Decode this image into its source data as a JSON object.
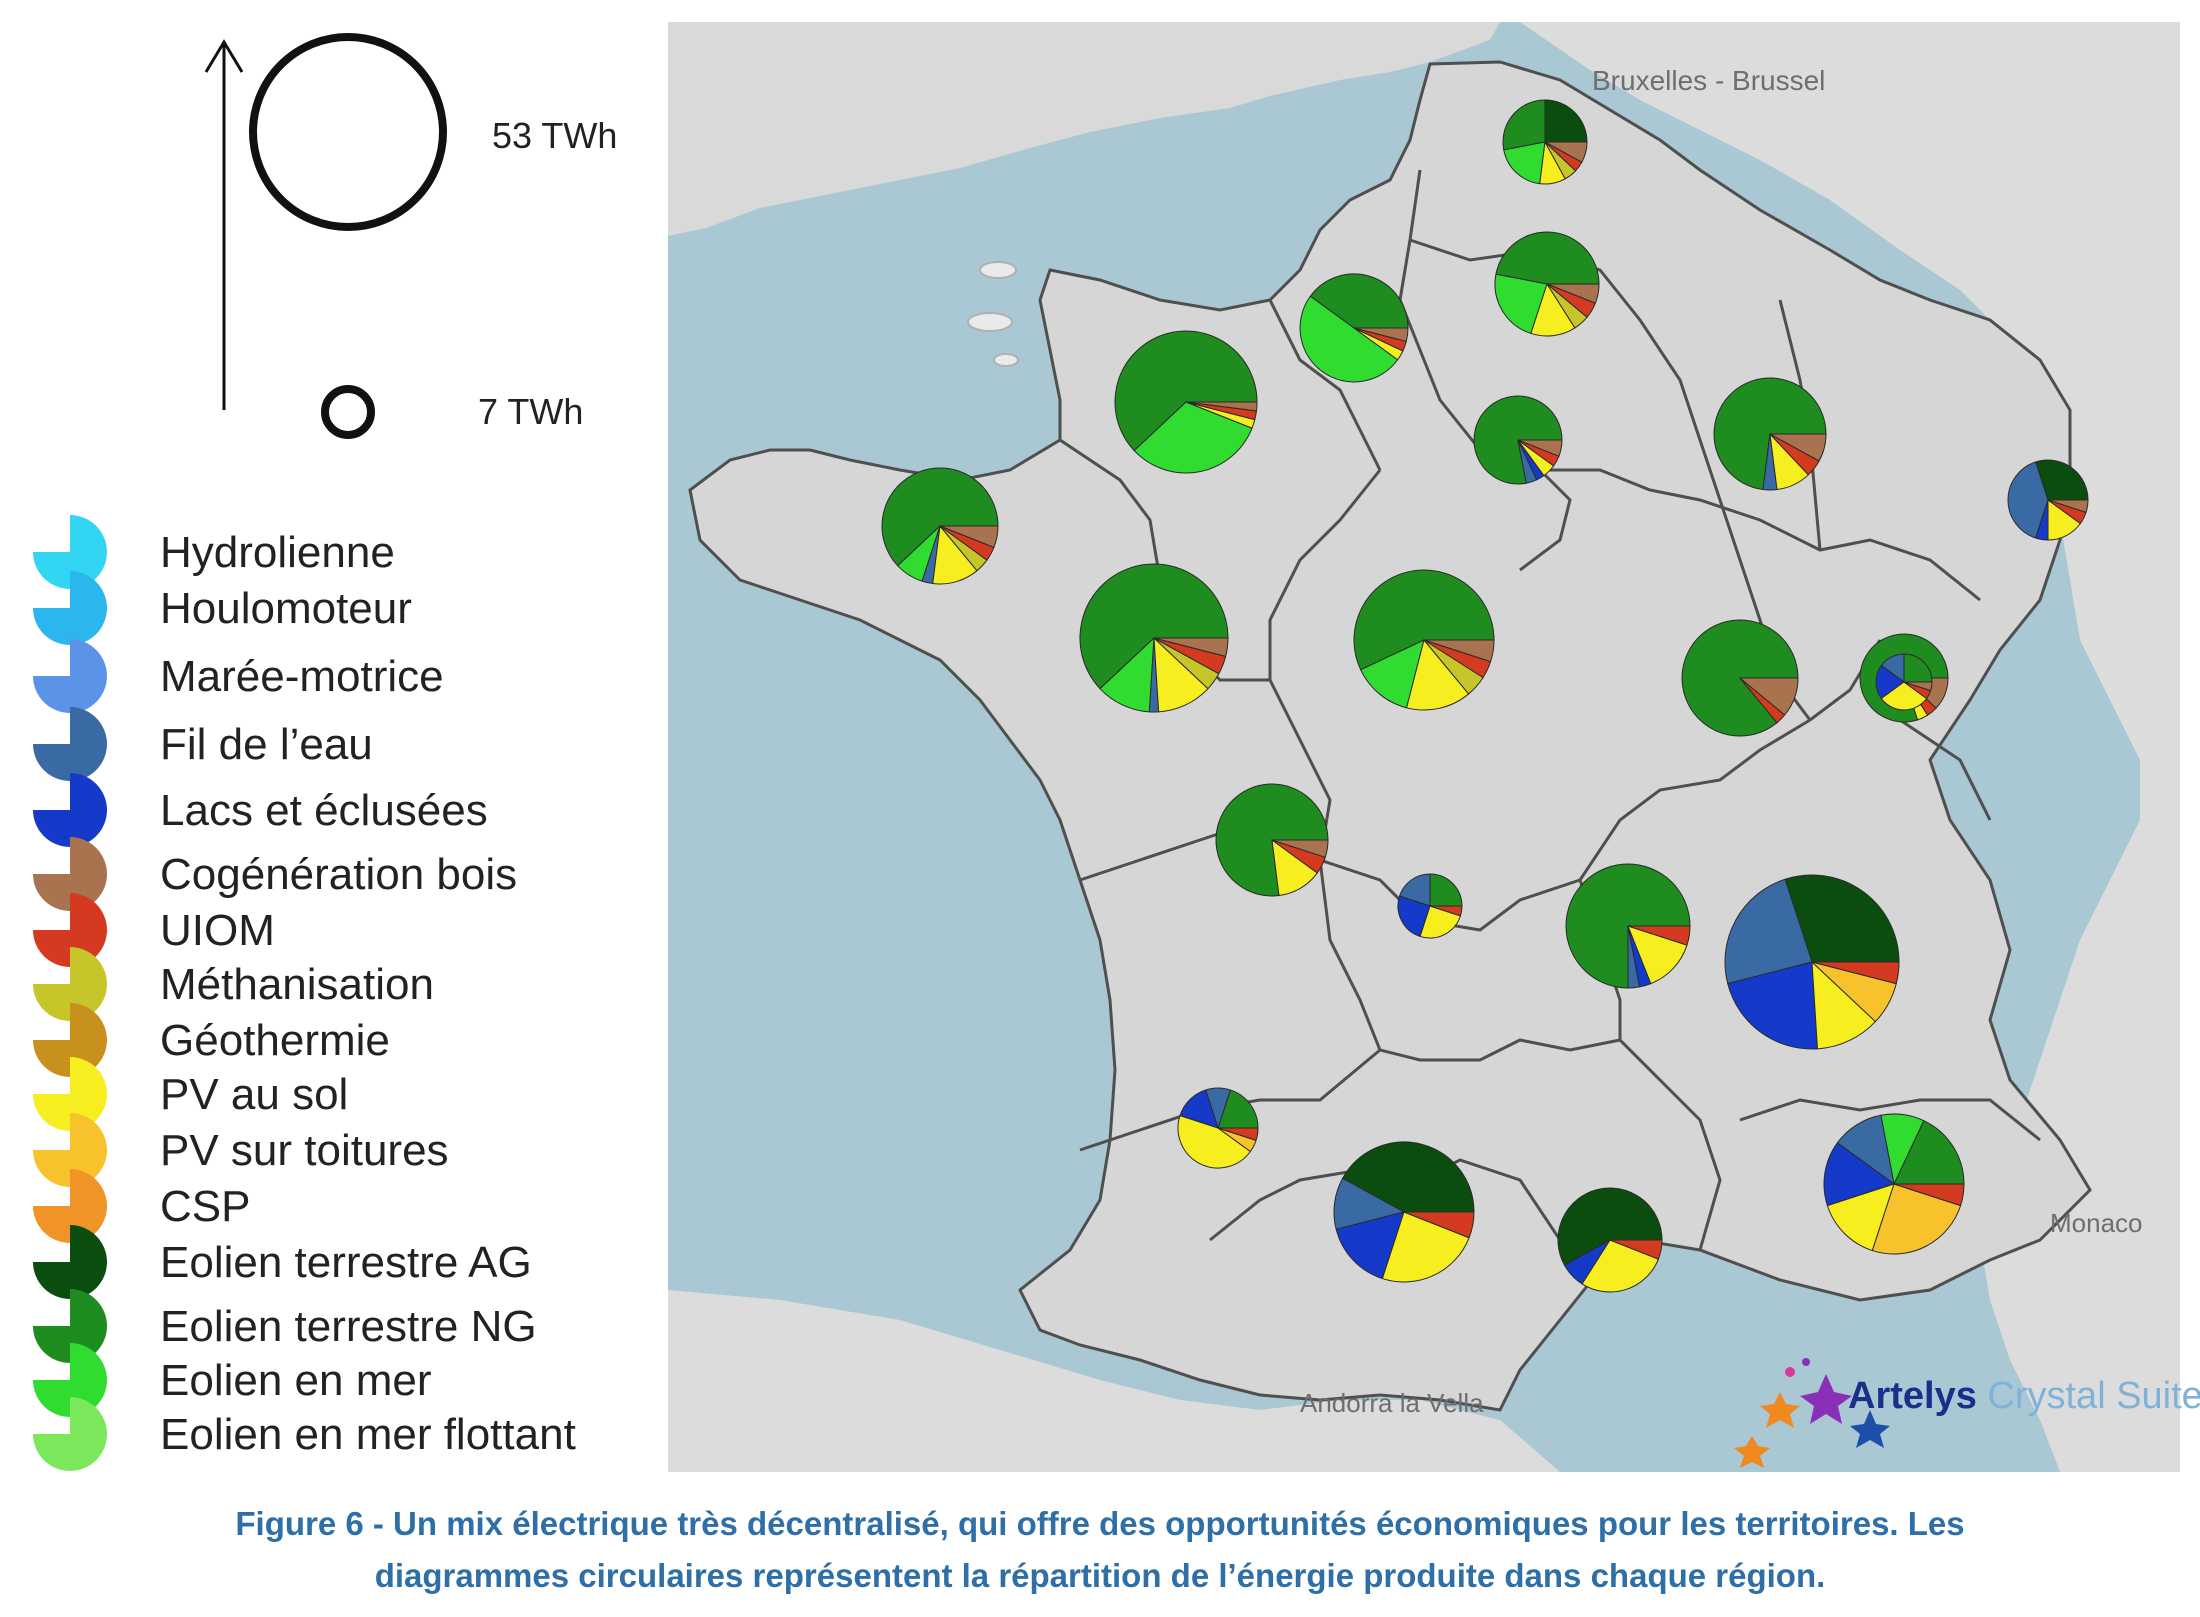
{
  "scale": {
    "large_label": "53 TWh",
    "small_label": "7 TWh",
    "large_twh": 53,
    "small_twh": 7
  },
  "legend": [
    {
      "label": "Hydrolienne",
      "color": "#33d6f2"
    },
    {
      "label": "Houlomoteur",
      "color": "#2bb6ee"
    },
    {
      "label": "Marée-motrice",
      "color": "#5b93e6"
    },
    {
      "label": "Fil de l’eau",
      "color": "#3a6aa3"
    },
    {
      "label": "Lacs et éclusées",
      "color": "#1539c9"
    },
    {
      "label": "Cogénération bois",
      "color": "#a8734e"
    },
    {
      "label": "UIOM",
      "color": "#d43a1f"
    },
    {
      "label": "Méthanisation",
      "color": "#c6c62a"
    },
    {
      "label": "Géothermie",
      "color": "#c8901c"
    },
    {
      "label": "PV au sol",
      "color": "#f6ee1f"
    },
    {
      "label": "PV sur toitures",
      "color": "#f7c22c"
    },
    {
      "label": "CSP",
      "color": "#f19427"
    },
    {
      "label": "Eolien terrestre AG",
      "color": "#0b4c0f"
    },
    {
      "label": "Eolien terrestre NG",
      "color": "#1f8c1f"
    },
    {
      "label": "Eolien en mer",
      "color": "#2fdc2f"
    },
    {
      "label": "Eolien en mer flottant",
      "color": "#7ae85a"
    }
  ],
  "map_labels": {
    "brussels": "Bruxelles - Brussel",
    "andorra": "Andorra la Vella",
    "monaco": "Monaco"
  },
  "brand": {
    "name": "Artelys",
    "product": " Crystal Suite"
  },
  "caption": {
    "line1": "Figure 6 - Un mix électrique très décentralisé, qui offre des opportunités économiques pour les territoires. Les",
    "line2": "diagrammes circulaires représentent la répartition de l’énergie produite dans chaque région."
  },
  "regions": [
    {
      "pie": [
        [
          "Eolien terrestre AG",
          25
        ],
        [
          "Eolien terrestre NG",
          28
        ],
        [
          "Eolien en mer",
          20
        ],
        [
          "PV au sol",
          10
        ],
        [
          "Méthanisation",
          5
        ],
        [
          "UIOM",
          4
        ],
        [
          "Cogénération bois",
          8
        ]
      ]
    },
    {
      "pie": [
        [
          "Eolien terrestre NG",
          47
        ],
        [
          "Eolien en mer",
          23
        ],
        [
          "PV au sol",
          14
        ],
        [
          "Méthanisation",
          5
        ],
        [
          "UIOM",
          5
        ],
        [
          "Cogénération bois",
          6
        ]
      ]
    },
    {
      "pie": [
        [
          "Eolien terrestre NG",
          40
        ],
        [
          "Eolien en mer",
          50
        ],
        [
          "PV au sol",
          3
        ],
        [
          "UIOM",
          3
        ],
        [
          "Cogénération bois",
          4
        ]
      ]
    },
    {
      "pie": [
        [
          "Eolien terrestre NG",
          62
        ],
        [
          "Eolien en mer",
          32
        ],
        [
          "PV au sol",
          2
        ],
        [
          "UIOM",
          2
        ],
        [
          "Cogénération bois",
          2
        ]
      ]
    },
    {
      "pie": [
        [
          "Eolien terrestre NG",
          62
        ],
        [
          "Eolien en mer",
          8
        ],
        [
          "Fil de l’eau",
          3
        ],
        [
          "PV au sol",
          13
        ],
        [
          "Méthanisation",
          4
        ],
        [
          "UIOM",
          4
        ],
        [
          "Cogénération bois",
          6
        ]
      ]
    },
    {
      "pie": [
        [
          "Eolien terrestre NG",
          78
        ],
        [
          "Fil de l’eau",
          4
        ],
        [
          "Lacs et éclusées",
          3
        ],
        [
          "PV au sol",
          5
        ],
        [
          "UIOM",
          4
        ],
        [
          "Cogénération bois",
          6
        ]
      ]
    },
    {
      "pie": [
        [
          "Eolien terrestre NG",
          73
        ],
        [
          "Fil de l’eau",
          4
        ],
        [
          "PV au sol",
          10
        ],
        [
          "UIOM",
          5
        ],
        [
          "Cogénération bois",
          8
        ]
      ]
    },
    {
      "pie": [
        [
          "Eolien terrestre AG",
          30
        ],
        [
          "Fil de l’eau",
          40
        ],
        [
          "Lacs et éclusées",
          5
        ],
        [
          "PV au sol",
          15
        ],
        [
          "UIOM",
          5
        ],
        [
          "Cogénération bois",
          5
        ]
      ]
    },
    {
      "pie": [
        [
          "Eolien terrestre NG",
          62
        ],
        [
          "Eolien en mer",
          12
        ],
        [
          "Fil de l’eau",
          2
        ],
        [
          "PV au sol",
          12
        ],
        [
          "Méthanisation",
          4
        ],
        [
          "UIOM",
          4
        ],
        [
          "Cogénération bois",
          4
        ]
      ]
    },
    {
      "pie": [
        [
          "Eolien terrestre NG",
          57
        ],
        [
          "Eolien en mer",
          14
        ],
        [
          "PV au sol",
          15
        ],
        [
          "Méthanisation",
          5
        ],
        [
          "UIOM",
          4
        ],
        [
          "Cogénération bois",
          5
        ]
      ]
    },
    {
      "pie": [
        [
          "Eolien terrestre NG",
          86
        ],
        [
          "UIOM",
          3
        ],
        [
          "Cogénération bois",
          11
        ]
      ]
    },
    {
      "pie": [
        [
          "Eolien terrestre NG",
          80
        ],
        [
          "PV au sol",
          4
        ],
        [
          "UIOM",
          4
        ],
        [
          "Cogénération bois",
          12
        ]
      ]
    },
    {
      "pie": [
        [
          "Eolien terrestre NG",
          25
        ],
        [
          "Fil de l’eau",
          15
        ],
        [
          "Lacs et éclusées",
          20
        ],
        [
          "PV au sol",
          30
        ],
        [
          "UIOM",
          5
        ],
        [
          "Cogénération bois",
          5
        ]
      ]
    },
    {
      "pie": [
        [
          "Eolien terrestre NG",
          77
        ],
        [
          "PV au sol",
          13
        ],
        [
          "UIOM",
          5
        ],
        [
          "Cogénération bois",
          5
        ]
      ]
    },
    {
      "pie": [
        [
          "Eolien terrestre NG",
          25
        ],
        [
          "Fil de l’eau",
          20
        ],
        [
          "Lacs et éclusées",
          25
        ],
        [
          "PV au sol",
          25
        ],
        [
          "UIOM",
          5
        ]
      ]
    },
    {
      "pie": [
        [
          "Eolien terrestre NG",
          75
        ],
        [
          "Fil de l’eau",
          3
        ],
        [
          "Lacs et éclusées",
          3
        ],
        [
          "PV au sol",
          14
        ],
        [
          "UIOM",
          5
        ]
      ]
    },
    {
      "pie": [
        [
          "Eolien terrestre AG",
          30
        ],
        [
          "Fil de l’eau",
          24
        ],
        [
          "Lacs et éclusées",
          22
        ],
        [
          "PV au sol",
          12
        ],
        [
          "PV sur toitures",
          8
        ],
        [
          "UIOM",
          4
        ]
      ]
    },
    {
      "pie": [
        [
          "Eolien terrestre NG",
          20
        ],
        [
          "Fil de l’eau",
          10
        ],
        [
          "Lacs et éclusées",
          15
        ],
        [
          "PV au sol",
          45
        ],
        [
          "PV sur toitures",
          5
        ],
        [
          "UIOM",
          5
        ]
      ]
    },
    {
      "pie": [
        [
          "Eolien terrestre AG",
          42
        ],
        [
          "Fil de l’eau",
          12
        ],
        [
          "Lacs et éclusées",
          16
        ],
        [
          "PV au sol",
          24
        ],
        [
          "UIOM",
          6
        ]
      ]
    },
    {
      "pie": [
        [
          "Eolien terrestre AG",
          58
        ],
        [
          "Lacs et éclusées",
          8
        ],
        [
          "PV au sol",
          28
        ],
        [
          "UIOM",
          6
        ]
      ]
    },
    {
      "pie": [
        [
          "Eolien terrestre NG",
          18
        ],
        [
          "Eolien en mer",
          10
        ],
        [
          "Fil de l’eau",
          12
        ],
        [
          "Lacs et éclusées",
          15
        ],
        [
          "PV au sol",
          15
        ],
        [
          "PV sur toitures",
          25
        ],
        [
          "UIOM",
          5
        ]
      ]
    }
  ]
}
